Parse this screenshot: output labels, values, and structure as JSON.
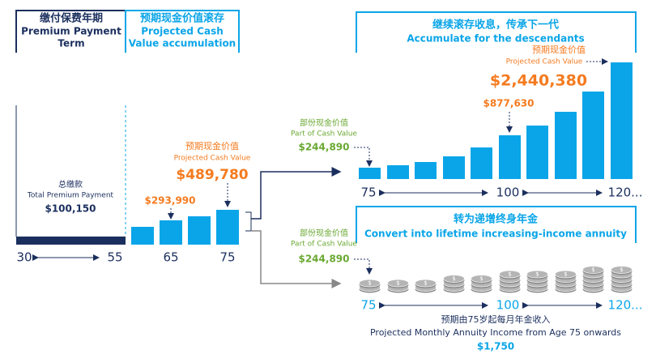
{
  "left_header": {
    "zh": "缴付保费年期",
    "en": [
      "Premium Payment",
      "Term"
    ]
  },
  "mid_header": {
    "zh": "预期现金价值滚存",
    "en": [
      "Projected Cash",
      "Value accumulation"
    ]
  },
  "premium": {
    "zh": "总缴款",
    "en": "Total Premium Payment",
    "value": "$100,150"
  },
  "cash_value": {
    "zh": "预期现金价值",
    "en": "Projected Cash Value",
    "value": "$489,780",
    "mid_value": "$293,990"
  },
  "left_axis": [
    "30",
    "55",
    "65",
    "75"
  ],
  "accumulate": {
    "header_zh": "继续滚存收息，传承下一代",
    "header_en": "Accumulate for the descendants",
    "part_zh": "部份现金价值",
    "part_en": "Part of Cash Value",
    "part_value": "$244,890",
    "mid_value": "$877,630",
    "end_zh": "预期现金价值",
    "end_en": "Projected Cash Value",
    "end_value": "$2,440,380",
    "axis": [
      "75",
      "100",
      "120..."
    ]
  },
  "annuity": {
    "header_zh": "转为递增终身年金",
    "header_en": "Convert into lifetime increasing-income annuity",
    "part_zh": "部份现金价值",
    "part_en": "Part of Cash Value",
    "part_value": "$244,890",
    "axis": [
      "75",
      "100",
      "120..."
    ],
    "income_zh": "预期由75岁起每月年金收入",
    "income_en": "Projected Monthly Annuity Income from Age 75 onwards",
    "income_value": "$1,750"
  }
}
